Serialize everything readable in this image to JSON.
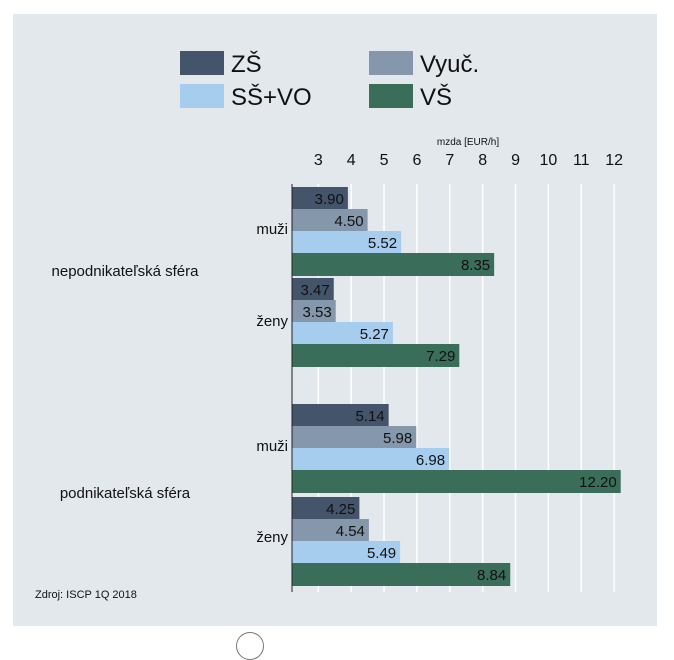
{
  "chart_data": {
    "type": "bar",
    "orientation": "horizontal",
    "axis_title": "mzda [EUR/h]",
    "x_ticks": [
      3,
      4,
      5,
      6,
      7,
      8,
      9,
      10,
      11,
      12
    ],
    "xlim": [
      2.2,
      12.3
    ],
    "grid": true,
    "legend": [
      {
        "name": "ZŠ",
        "color": "#44546a"
      },
      {
        "name": "Vyuč.",
        "color": "#8497ab"
      },
      {
        "name": "SŠ+VO",
        "color": "#a6cdee"
      },
      {
        "name": "VŠ",
        "color": "#3b6e5a"
      }
    ],
    "groups": [
      {
        "name": "nepodnikateľská sféra",
        "subgroups": [
          {
            "name": "muži",
            "values": [
              3.9,
              4.5,
              5.52,
              8.35
            ],
            "labels": [
              "3.90",
              "4.50",
              "5.52",
              "8.35"
            ]
          },
          {
            "name": "ženy",
            "values": [
              3.47,
              3.53,
              5.27,
              7.29
            ],
            "labels": [
              "3.47",
              "3.53",
              "5.27",
              "7.29"
            ]
          }
        ]
      },
      {
        "name": "podnikateľská sféra",
        "subgroups": [
          {
            "name": "muži",
            "values": [
              5.14,
              5.98,
              6.98,
              12.2
            ],
            "labels": [
              "5.14",
              "5.98",
              "6.98",
              "12.20"
            ]
          },
          {
            "name": "ženy",
            "values": [
              4.25,
              4.54,
              5.49,
              8.84
            ],
            "labels": [
              "4.25",
              "4.54",
              "5.49",
              "8.84"
            ]
          }
        ]
      }
    ],
    "source": "Zdroj: ISCP 1Q 2018"
  }
}
